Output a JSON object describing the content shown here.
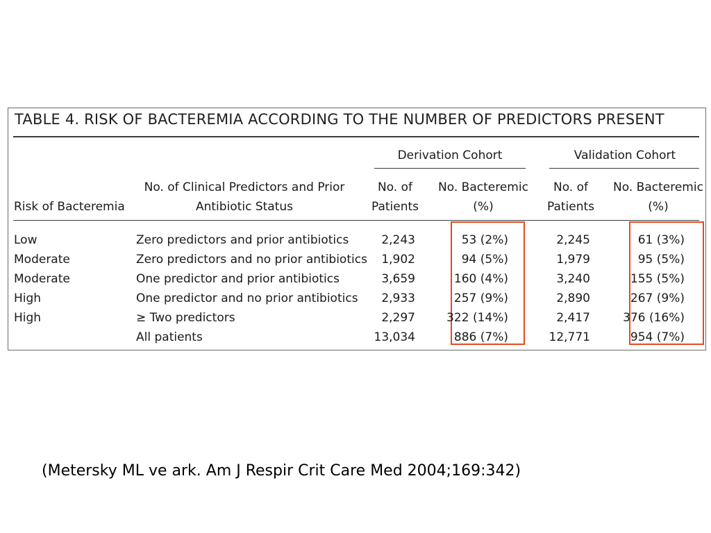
{
  "table": {
    "title": "TABLE 4. RISK OF BACTEREMIA ACCORDING TO THE NUMBER OF PREDICTORS PRESENT",
    "group_headers": {
      "derivation": "Derivation Cohort",
      "validation": "Validation Cohort"
    },
    "columns": {
      "risk": "Risk of Bacteremia",
      "predictors_line1": "No. of Clinical Predictors and Prior",
      "predictors_line2": "Antibiotic Status",
      "patients_line1": "No. of",
      "patients_line2": "Patients",
      "bacteremic_line1": "No. Bacteremic",
      "bacteremic_line2": "(%)"
    },
    "rows": [
      {
        "risk": "Low",
        "predictors": "Zero predictors and prior antibiotics",
        "d_patients": "2,243",
        "d_bact": "53 (2%)",
        "v_patients": "2,245",
        "v_bact": "61 (3%)"
      },
      {
        "risk": "Moderate",
        "predictors": "Zero predictors and no prior antibiotics",
        "d_patients": "1,902",
        "d_bact": "94 (5%)",
        "v_patients": "1,979",
        "v_bact": "95 (5%)"
      },
      {
        "risk": "Moderate",
        "predictors": "One predictor and prior antibiotics",
        "d_patients": "3,659",
        "d_bact": "160 (4%)",
        "v_patients": "3,240",
        "v_bact": "155 (5%)"
      },
      {
        "risk": "High",
        "predictors": "One predictor and no prior antibiotics",
        "d_patients": "2,933",
        "d_bact": "257 (9%)",
        "v_patients": "2,890",
        "v_bact": "267 (9%)"
      },
      {
        "risk": "High",
        "predictors": "≥ Two predictors",
        "d_patients": "2,297",
        "d_bact": "322 (14%)",
        "v_patients": "2,417",
        "v_bact": "376 (16%)"
      },
      {
        "risk": "",
        "predictors": "All patients",
        "d_patients": "13,034",
        "d_bact": "886 (7%)",
        "v_patients": "12,771",
        "v_bact": "954 (7%)"
      }
    ]
  },
  "highlight_color": "#e8471f",
  "citation": "(Metersky ML ve ark. Am J Respir Crit Care Med 2004;169:342)"
}
